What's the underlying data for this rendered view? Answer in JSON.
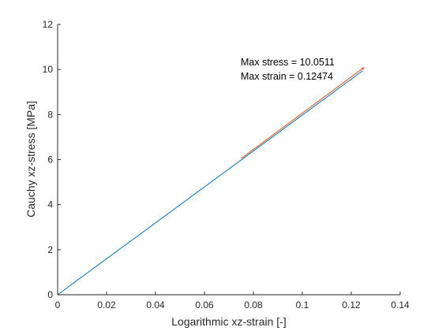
{
  "chart_data": {
    "type": "line",
    "title": "",
    "xlabel": "Logarithmic xz-strain [-]",
    "ylabel": "Cauchy xz-stress [MPa]",
    "xlim": [
      0,
      0.14
    ],
    "ylim": [
      0,
      12
    ],
    "x_ticks": [
      0,
      0.02,
      0.04,
      0.06,
      0.08,
      0.1,
      0.12,
      0.14
    ],
    "x_tick_labels": [
      "0",
      "0.02",
      "0.04",
      "0.06",
      "0.08",
      "0.1",
      "0.12",
      "0.14"
    ],
    "y_ticks": [
      0,
      2,
      4,
      6,
      8,
      10,
      12
    ],
    "y_tick_labels": [
      "0",
      "2",
      "4",
      "6",
      "8",
      "10",
      "12"
    ],
    "grid": false,
    "series": [
      {
        "color": "#0072bd",
        "x": [
          0,
          0.12474
        ],
        "y": [
          0,
          9.95
        ]
      },
      {
        "color": "#d95319",
        "x": [
          0.075,
          0.12474
        ],
        "y": [
          6.05,
          10.0511
        ]
      }
    ],
    "max_point": {
      "x": 0.12474,
      "y": 10.0511,
      "marker_color": "#ff0000"
    },
    "annotations": {
      "max_stress": "Max stress = 10.0511",
      "max_strain": "Max strain = 0.12474"
    }
  }
}
